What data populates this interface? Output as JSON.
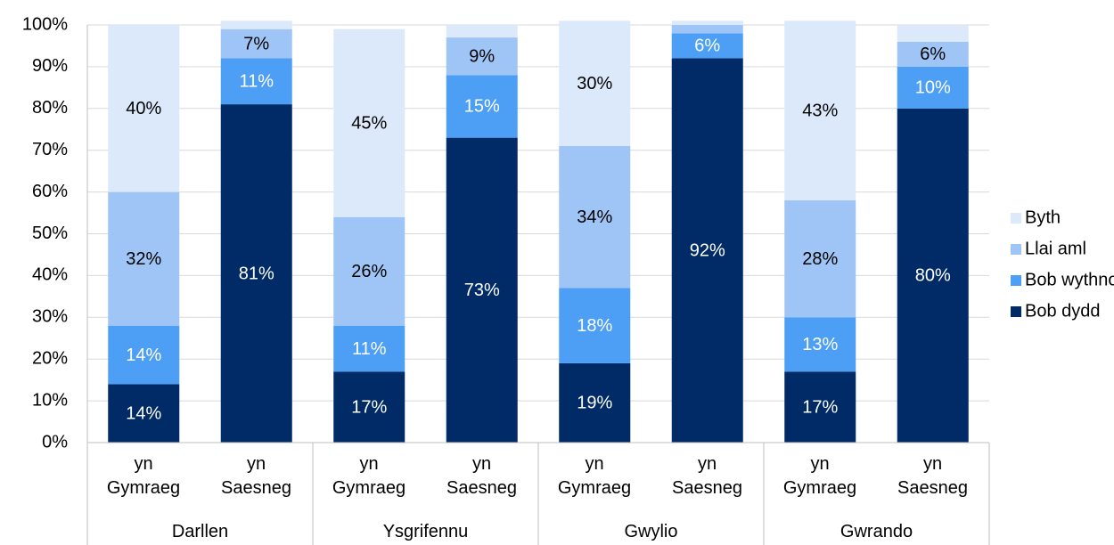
{
  "chart_data": {
    "type": "stacked_bar",
    "categories": [
      "yn\nGymraeg",
      "yn\nSaesneg",
      "yn\nGymraeg",
      "yn\nSaesneg",
      "yn\nGymraeg",
      "yn\nSaesneg",
      "yn\nGymraeg",
      "yn\nSaesneg"
    ],
    "groups": [
      "Darllen",
      "Ysgrifennu",
      "Gwylio",
      "Gwrando"
    ],
    "series": [
      {
        "name": "Bob dydd",
        "color": "#002b66",
        "values": [
          14,
          81,
          17,
          73,
          19,
          92,
          17,
          80
        ],
        "value_labels": [
          "14%",
          "81%",
          "17%",
          "73%",
          "19%",
          "92%",
          "17%",
          "80%"
        ]
      },
      {
        "name": "Bob wythnos",
        "color": "#4d9ff5",
        "values": [
          14,
          11,
          11,
          15,
          18,
          6,
          13,
          10
        ],
        "value_labels": [
          "14%",
          "11%",
          "11%",
          "15%",
          "18%",
          "6%",
          "13%",
          "10%"
        ]
      },
      {
        "name": "Llai aml",
        "color": "#9fc5f6",
        "values": [
          32,
          7,
          26,
          9,
          34,
          2,
          28,
          6
        ],
        "value_labels": [
          "32%",
          "7%",
          "26%",
          "9%",
          "34%",
          null,
          "28%",
          "6%"
        ]
      },
      {
        "name": "Byth",
        "color": "#dce9fb",
        "values": [
          40,
          2,
          45,
          3,
          30,
          1,
          43,
          4
        ],
        "value_labels": [
          "40%",
          null,
          "45%",
          null,
          "30%",
          null,
          "43%",
          null
        ]
      }
    ],
    "ylim": [
      0,
      100
    ],
    "yticks": [
      {
        "value": 0,
        "label": "0%"
      },
      {
        "value": 10,
        "label": "10%"
      },
      {
        "value": 20,
        "label": "20%"
      },
      {
        "value": 30,
        "label": "30%"
      },
      {
        "value": 40,
        "label": "40%"
      },
      {
        "value": 50,
        "label": "50%"
      },
      {
        "value": 60,
        "label": "60%"
      },
      {
        "value": 70,
        "label": "70%"
      },
      {
        "value": 80,
        "label": "80%"
      },
      {
        "value": 90,
        "label": "90%"
      },
      {
        "value": 100,
        "label": "100%"
      }
    ],
    "grid": true,
    "legend": "right"
  }
}
